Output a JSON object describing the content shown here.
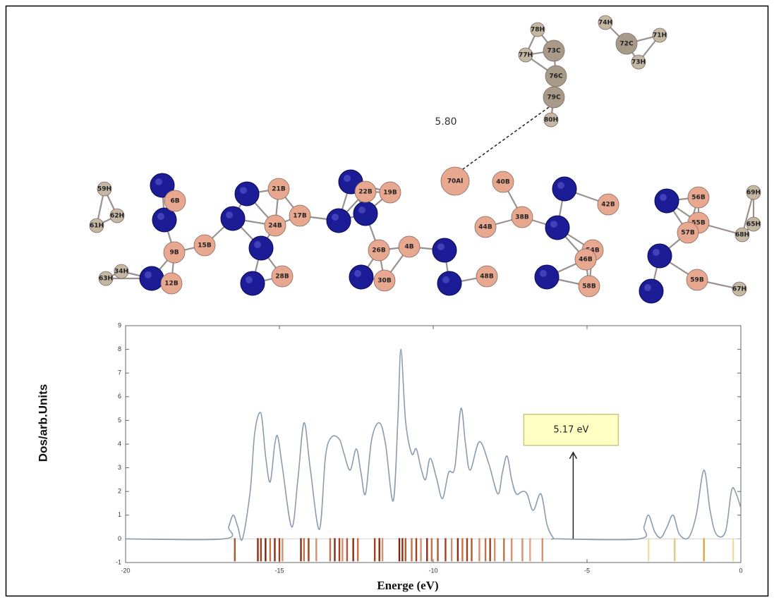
{
  "molecule": {
    "distance_label": "5.80",
    "atoms": [
      "78H",
      "74H",
      "73C",
      "72C",
      "71H",
      "77H",
      "73H",
      "76C",
      "79C",
      "80H",
      "59H",
      "6B",
      "21B",
      "22B",
      "19B",
      "70Al",
      "40B",
      "42B",
      "56B",
      "69H",
      "62H",
      "61H",
      "17B",
      "24B",
      "38B",
      "44B",
      "55B",
      "65H",
      "57B",
      "68H",
      "15B",
      "9B",
      "26B",
      "4B",
      "54B",
      "46B",
      "63H",
      "34H",
      "12B",
      "28B",
      "30B",
      "48B",
      "58B",
      "59B",
      "67H"
    ]
  },
  "chart_data": {
    "type": "line",
    "xlabel": "Energe (eV)",
    "ylabel": "Dos/arb.Units",
    "color": "#8a9cae",
    "xlim": [
      -20,
      0
    ],
    "ylim": [
      -1,
      9
    ],
    "xticks": [
      -20,
      -15,
      -10,
      -5,
      0
    ],
    "yticks": [
      -1,
      0,
      1,
      2,
      3,
      4,
      5,
      6,
      7,
      8,
      9
    ],
    "x": [
      -20,
      -16.8,
      -16.65,
      -16.5,
      -16.35,
      -16.2,
      -15.95,
      -15.8,
      -15.6,
      -15.45,
      -15.3,
      -15.15,
      -15.05,
      -14.9,
      -14.6,
      -14.4,
      -14.2,
      -14.0,
      -13.7,
      -13.5,
      -13.3,
      -13.05,
      -12.9,
      -12.7,
      -12.5,
      -12.35,
      -12.2,
      -12.0,
      -11.75,
      -11.55,
      -11.3,
      -11.15,
      -11.05,
      -10.9,
      -10.7,
      -10.55,
      -10.4,
      -10.25,
      -10.1,
      -9.9,
      -9.7,
      -9.5,
      -9.3,
      -9.1,
      -8.95,
      -8.8,
      -8.5,
      -8.2,
      -7.9,
      -7.75,
      -7.6,
      -7.45,
      -7.3,
      -7.1,
      -6.95,
      -6.75,
      -6.5,
      -6.3,
      -6.1,
      -5.9,
      -3.3,
      -3.15,
      -3.0,
      -2.8,
      -2.6,
      -2.4,
      -2.2,
      -2.0,
      -1.7,
      -1.45,
      -1.2,
      -1.0,
      -0.8,
      -0.5,
      -0.3,
      -0.15,
      0
    ],
    "values": [
      0,
      0,
      0.5,
      1.0,
      0.5,
      0,
      2.0,
      4.5,
      5.3,
      3.5,
      2.4,
      4.0,
      4.3,
      3.0,
      0.5,
      2.5,
      4.9,
      3.0,
      0.4,
      3.5,
      4.3,
      4.2,
      3.6,
      2.9,
      3.8,
      2.8,
      1.9,
      4.2,
      4.9,
      4.0,
      1.6,
      5.0,
      8.0,
      5.0,
      3.6,
      3.8,
      3.0,
      2.5,
      3.4,
      2.6,
      1.7,
      2.8,
      3.0,
      5.5,
      4.0,
      2.9,
      4.1,
      3.2,
      1.9,
      2.8,
      3.5,
      2.5,
      1.9,
      2.0,
      1.9,
      1.2,
      1.9,
      0.6,
      0.05,
      0,
      0,
      0.5,
      1.0,
      0.3,
      0.05,
      0.5,
      1.0,
      0.2,
      0.05,
      1.0,
      2.9,
      1.2,
      0.2,
      0.3,
      2.05,
      1.9,
      1.3
    ],
    "levels": [
      -16.45,
      -15.7,
      -15.6,
      -15.45,
      -15.3,
      -15.15,
      -15.0,
      -14.9,
      -14.3,
      -14.2,
      -14.05,
      -13.8,
      -13.35,
      -13.2,
      -13.05,
      -12.95,
      -12.8,
      -12.6,
      -12.45,
      -11.9,
      -11.75,
      -11.65,
      -11.1,
      -11.0,
      -10.9,
      -10.7,
      -10.55,
      -10.4,
      -10.2,
      -10.05,
      -9.85,
      -9.6,
      -9.4,
      -9.2,
      -9.05,
      -8.9,
      -8.75,
      -8.5,
      -8.3,
      -8.15,
      -8.0,
      -7.7,
      -7.45,
      -7.1,
      -6.85,
      -6.45,
      -3.0,
      -2.15,
      -1.2,
      -0.25
    ],
    "level_colors": [
      "#b4572c",
      "#8b2c14",
      "#a0401e",
      "#7a2410",
      "#c4714a",
      "#8b2c14",
      "#a0401e",
      "#d69070",
      "#8b2c14",
      "#c4714a",
      "#a0401e",
      "#d69070",
      "#c4714a",
      "#8b2c14",
      "#a0401e",
      "#d69070",
      "#b4572c",
      "#8b2c14",
      "#c4714a",
      "#a0401e",
      "#8b2c14",
      "#d69070",
      "#7a2410",
      "#8b2c14",
      "#b4572c",
      "#c4714a",
      "#a0401e",
      "#d69070",
      "#8b2c14",
      "#c4714a",
      "#b4572c",
      "#a0401e",
      "#d69070",
      "#8b2c14",
      "#c4714a",
      "#a0401e",
      "#b4572c",
      "#d69070",
      "#c4714a",
      "#a0401e",
      "#d69070",
      "#c4714a",
      "#d69070",
      "#d69070",
      "#e0a888",
      "#d69070",
      "#f0dca0",
      "#e8c878",
      "#d8a840",
      "#f0dca0"
    ],
    "annotation": {
      "text": "5.17 eV",
      "x": -5.45,
      "y": 3.65
    }
  }
}
